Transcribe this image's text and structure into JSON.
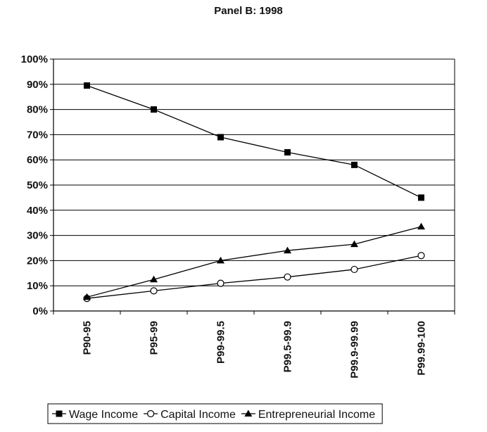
{
  "chart_data": {
    "type": "line",
    "title": "Panel B: 1998",
    "xlabel": "",
    "ylabel": "",
    "ylim": [
      0,
      100
    ],
    "y_ticks": [
      "0%",
      "10%",
      "20%",
      "30%",
      "40%",
      "50%",
      "60%",
      "70%",
      "80%",
      "90%",
      "100%"
    ],
    "grid": "horizontal",
    "legend_position": "bottom",
    "categories": [
      "P90-95",
      "P95-99",
      "P99-99.5",
      "P99.5-99.9",
      "P99.9-99.99",
      "P99.99-100"
    ],
    "series": [
      {
        "name": "Wage Income",
        "marker": "filled-square",
        "values": [
          89.5,
          80,
          69,
          63,
          58,
          45
        ]
      },
      {
        "name": "Capital Income",
        "marker": "open-circle",
        "values": [
          5,
          8,
          11,
          13.5,
          16.5,
          22
        ]
      },
      {
        "name": "Entrepreneurial Income",
        "marker": "filled-triangle",
        "values": [
          5.5,
          12.5,
          20,
          24,
          26.5,
          33.5
        ]
      }
    ]
  }
}
